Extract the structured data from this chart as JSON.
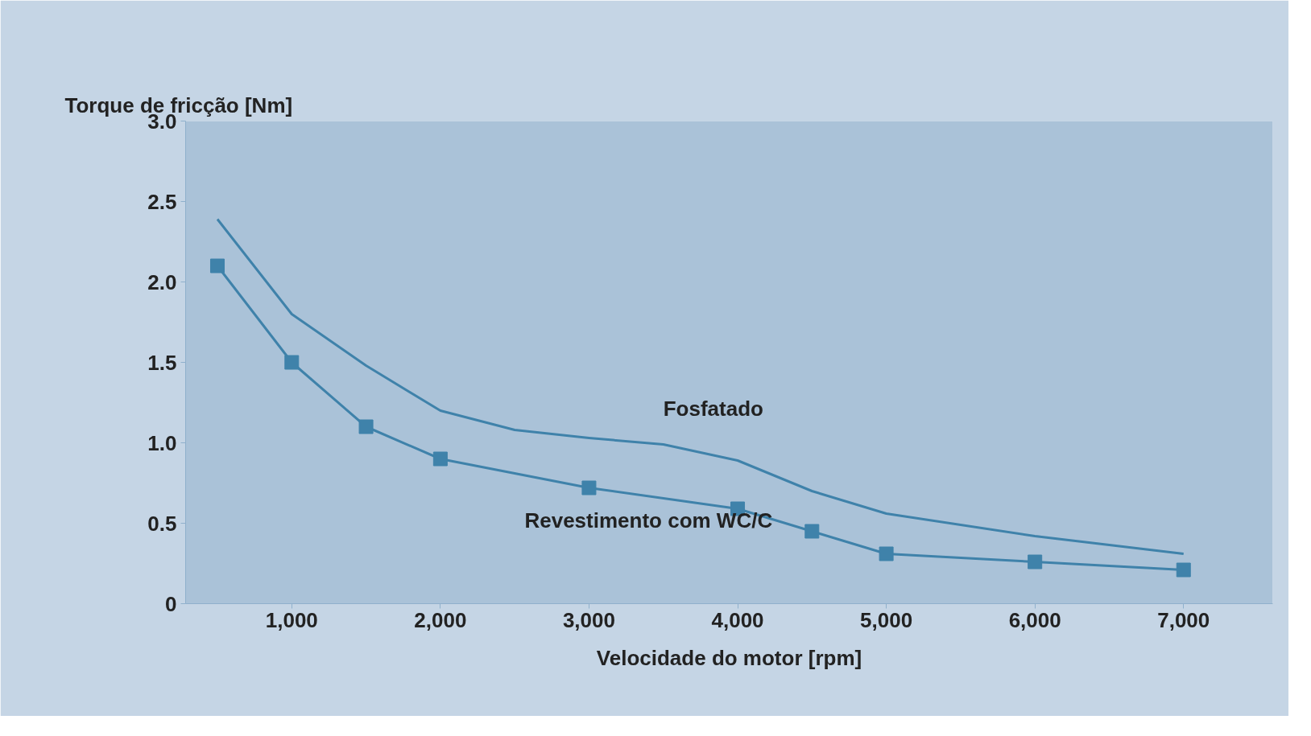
{
  "chart_data": {
    "type": "line",
    "ylabel": "Torque de fricção [Nm]",
    "xlabel": "Velocidade do motor [rpm]",
    "xlim": [
      286,
      7600
    ],
    "xticks": [
      {
        "value": 1000,
        "label": "1,000"
      },
      {
        "value": 2000,
        "label": "2,000"
      },
      {
        "value": 3000,
        "label": "3,000"
      },
      {
        "value": 4000,
        "label": "4,000"
      },
      {
        "value": 5000,
        "label": "5,000"
      },
      {
        "value": 6000,
        "label": "6,000"
      },
      {
        "value": 7000,
        "label": "7,000"
      }
    ],
    "ylim": [
      0,
      3
    ],
    "yticks": [
      0,
      {
        "value": 0.5,
        "label": "0.5"
      },
      {
        "value": 1,
        "label": "1.0"
      },
      {
        "value": 1.5,
        "label": "1.5"
      },
      {
        "value": 2,
        "label": "2.0"
      },
      {
        "value": 2.5,
        "label": "2.5"
      },
      {
        "value": 3,
        "label": "3.0"
      }
    ],
    "grid": false,
    "line_style": "solid",
    "series": [
      {
        "name": "Fosfatado",
        "color": "#3f82aa",
        "marker": "none",
        "x": [
          500,
          1000,
          1500,
          2000,
          2500,
          3000,
          3500,
          4000,
          4500,
          5000,
          6000,
          7000
        ],
        "values": [
          2.39,
          1.8,
          1.48,
          1.2,
          1.08,
          1.03,
          0.99,
          0.89,
          0.7,
          0.56,
          0.42,
          0.31
        ]
      },
      {
        "name": "Revestimento com WC/C",
        "color": "#3f82aa",
        "marker": "square",
        "x": [
          500,
          1000,
          1500,
          2000,
          3000,
          4000,
          4500,
          5000,
          6000,
          7000
        ],
        "values": [
          2.1,
          1.5,
          1.1,
          0.9,
          0.72,
          0.59,
          0.45,
          0.31,
          0.26,
          0.21
        ]
      }
    ]
  }
}
